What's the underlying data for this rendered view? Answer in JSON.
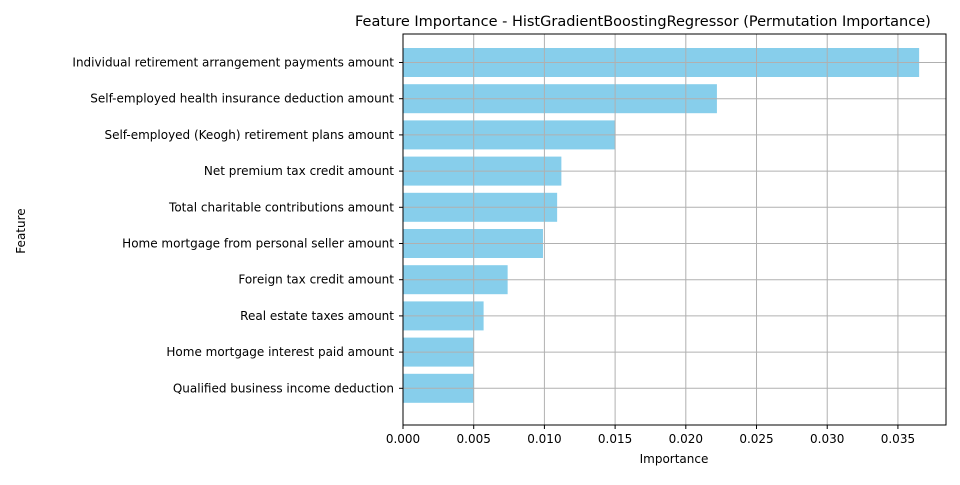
{
  "chart_data": {
    "type": "bar",
    "orientation": "horizontal",
    "title": "Feature Importance - HistGradientBoostingRegressor (Permutation Importance)",
    "xlabel": "Importance",
    "ylabel": "Feature",
    "categories": [
      "Individual retirement arrangement payments amount",
      "Self-employed health insurance deduction amount",
      "Self-employed (Keogh) retirement plans amount",
      "Net premium tax credit amount",
      "Total charitable contributions amount",
      "Home mortgage from personal seller amount",
      "Foreign tax credit amount",
      "Real estate taxes amount",
      "Home mortgage interest paid amount",
      "Qualified business income deduction"
    ],
    "values": [
      0.0365,
      0.0222,
      0.015,
      0.0112,
      0.0109,
      0.0099,
      0.0074,
      0.0057,
      0.005,
      0.005
    ],
    "xticks": [
      "0.000",
      "0.005",
      "0.010",
      "0.015",
      "0.020",
      "0.025",
      "0.030",
      "0.035"
    ],
    "xlim": [
      0,
      0.0384
    ],
    "grid": true,
    "bar_color": "#87ceeb",
    "grid_color": "#b0b0b0"
  }
}
